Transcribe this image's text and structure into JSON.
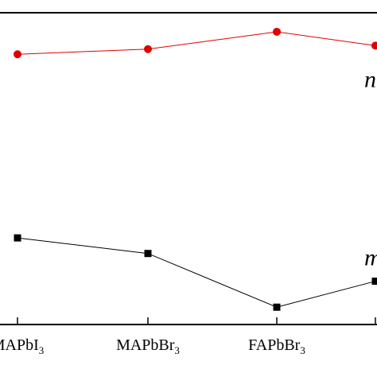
{
  "chart_data": {
    "type": "line",
    "categories": [
      {
        "base": "MAPbI",
        "sub": "3"
      },
      {
        "base": "MAPbBr",
        "sub": "3"
      },
      {
        "base": "FAPbBr",
        "sub": "3"
      },
      {
        "base": "",
        "sub": ""
      }
    ],
    "series": [
      {
        "name": "n",
        "color": "#e00000",
        "marker": "circle",
        "values": [
          3.12,
          3.18,
          3.38,
          3.22
        ]
      },
      {
        "name": "m",
        "color": "#000000",
        "marker": "square",
        "values": [
          1.0,
          0.82,
          0.2,
          0.5
        ]
      }
    ],
    "ylim": [
      0,
      3.6
    ],
    "xlabel": "",
    "ylabel": "",
    "title": "",
    "grid": false,
    "legend": "none"
  }
}
